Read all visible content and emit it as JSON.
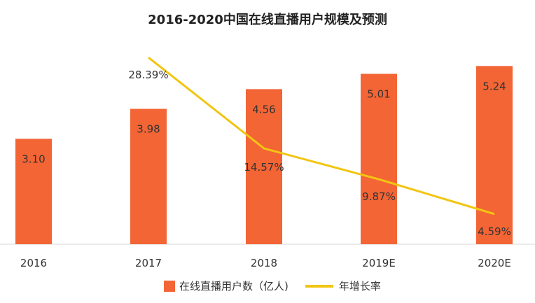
{
  "colors": {
    "bar": "#f36535",
    "line": "#f2c512",
    "axis": "#d9d9d9",
    "text": "#333333"
  },
  "chart_data": {
    "type": "bar",
    "title": "2016-2020中国在线直播用户规模及预测",
    "categories": [
      "2016",
      "2017",
      "2018",
      "2019E",
      "2020E"
    ],
    "series": [
      {
        "name": "在线直播用户数（亿人)",
        "type": "bar",
        "values": [
          3.1,
          3.98,
          4.56,
          5.01,
          5.24
        ],
        "labels": [
          "3.10",
          "3.98",
          "4.56",
          "5.01",
          "5.24"
        ]
      },
      {
        "name": "年增长率",
        "type": "line",
        "values": [
          null,
          28.39,
          14.57,
          9.87,
          4.59
        ],
        "labels": [
          "",
          "28.39%",
          "14.57%",
          "9.87%",
          "4.59%"
        ]
      }
    ],
    "ylim": [
      0,
      6
    ],
    "y2lim": [
      0,
      34
    ],
    "grid": false,
    "legend_position": "bottom"
  }
}
